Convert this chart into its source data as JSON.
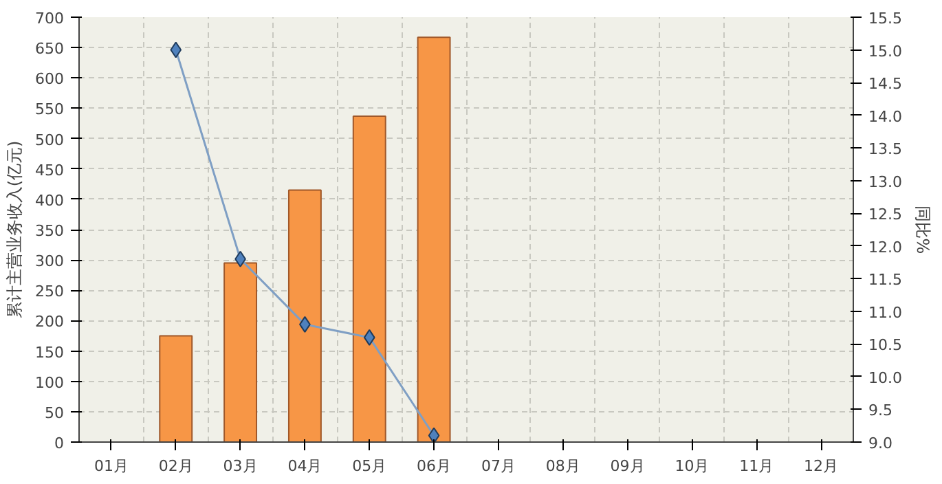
{
  "chart_data": {
    "type": "bar",
    "ylabel": "累计主营业务收入(亿元)",
    "y2label": "同比%",
    "categories": [
      "01月",
      "02月",
      "03月",
      "04月",
      "05月",
      "06月",
      "07月",
      "08月",
      "09月",
      "10月",
      "11月",
      "12月"
    ],
    "series": [
      {
        "color": "#f79646",
        "values": [
          null,
          175,
          295,
          415,
          537,
          667,
          null,
          null,
          null,
          null,
          null,
          null
        ]
      },
      {
        "type": "line",
        "axis": "y2",
        "color": "#7f9fc4",
        "marker": "diamond",
        "values": [
          null,
          15.0,
          11.8,
          10.8,
          10.6,
          9.1,
          null,
          null,
          null,
          null,
          null,
          null
        ]
      }
    ],
    "ylim": [
      0,
      700
    ],
    "yticks": [
      0,
      50,
      100,
      150,
      200,
      250,
      300,
      350,
      400,
      450,
      500,
      550,
      600,
      650,
      700
    ],
    "y2lim": [
      9.0,
      15.5
    ],
    "y2ticks": [
      {
        "value": 9.0,
        "label": "9.0"
      },
      {
        "value": 9.5,
        "label": "9.5"
      },
      {
        "value": 10.0,
        "label": "10.0"
      },
      {
        "value": 10.5,
        "label": "10.5"
      },
      {
        "value": 11.0,
        "label": "11.0"
      },
      {
        "value": 11.5,
        "label": "11.5"
      },
      {
        "value": 12.0,
        "label": "12.0"
      },
      {
        "value": 12.5,
        "label": "12.5"
      },
      {
        "value": 13.0,
        "label": "13.0"
      },
      {
        "value": 13.5,
        "label": "13.5"
      },
      {
        "value": 14.0,
        "label": "14.0"
      },
      {
        "value": 14.5,
        "label": "14.5"
      },
      {
        "value": 15.0,
        "label": "15.0"
      },
      {
        "value": 15.5,
        "label": "15.5"
      }
    ],
    "grid": true,
    "line_style": "solid"
  }
}
